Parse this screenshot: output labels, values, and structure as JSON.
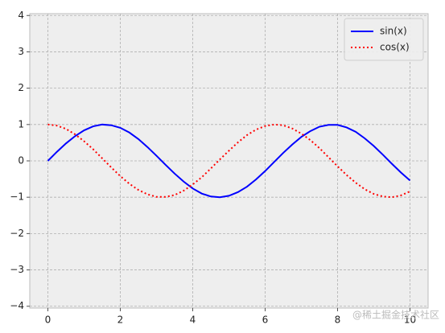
{
  "chart_data": {
    "type": "line",
    "x": [
      0,
      0.25,
      0.5,
      0.75,
      1,
      1.25,
      1.5,
      1.75,
      2,
      2.25,
      2.5,
      2.75,
      3,
      3.25,
      3.5,
      3.75,
      4,
      4.25,
      4.5,
      4.75,
      5,
      5.25,
      5.5,
      5.75,
      6,
      6.25,
      6.5,
      6.75,
      7,
      7.25,
      7.5,
      7.75,
      8,
      8.25,
      8.5,
      8.75,
      9,
      9.25,
      9.5,
      9.75,
      10
    ],
    "series": [
      {
        "name": "sin(x)",
        "color": "#0000ff",
        "linestyle": "solid",
        "values": [
          0,
          0.25,
          0.48,
          0.68,
          0.84,
          0.95,
          1.0,
          0.98,
          0.91,
          0.78,
          0.6,
          0.38,
          0.14,
          -0.11,
          -0.35,
          -0.57,
          -0.76,
          -0.9,
          -0.98,
          -1.0,
          -0.96,
          -0.86,
          -0.71,
          -0.51,
          -0.28,
          -0.03,
          0.22,
          0.45,
          0.66,
          0.82,
          0.94,
          0.99,
          0.99,
          0.92,
          0.8,
          0.62,
          0.41,
          0.17,
          -0.08,
          -0.32,
          -0.54
        ]
      },
      {
        "name": "cos(x)",
        "color": "#ff0000",
        "linestyle": "dotted",
        "values": [
          1.0,
          0.97,
          0.88,
          0.73,
          0.54,
          0.32,
          0.07,
          -0.18,
          -0.42,
          -0.63,
          -0.8,
          -0.92,
          -0.99,
          -0.99,
          -0.94,
          -0.82,
          -0.65,
          -0.45,
          -0.21,
          0.04,
          0.28,
          0.51,
          0.71,
          0.86,
          0.96,
          1.0,
          0.98,
          0.89,
          0.75,
          0.57,
          0.35,
          0.1,
          -0.15,
          -0.39,
          -0.6,
          -0.78,
          -0.91,
          -0.98,
          -1.0,
          -0.95,
          -0.84
        ]
      }
    ],
    "xlim": [
      -0.5,
      10.5
    ],
    "ylim": [
      -4.05,
      4.05
    ],
    "xticks": [
      0,
      2,
      4,
      6,
      8,
      10
    ],
    "yticks": [
      {
        "value": -4,
        "label": "−4"
      },
      {
        "value": -3,
        "label": "−3"
      },
      {
        "value": -2,
        "label": "−2"
      },
      {
        "value": -1,
        "label": "−1"
      },
      0,
      1,
      2,
      3,
      4
    ],
    "grid": true,
    "legend": "upper right",
    "watermark": "@稀土掘金技术社区"
  }
}
